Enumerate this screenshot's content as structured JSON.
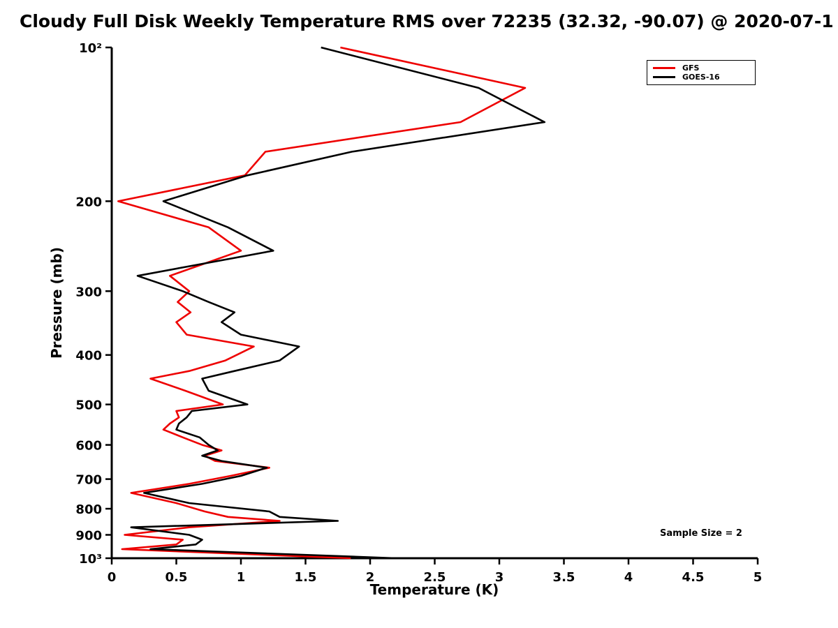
{
  "chart_data": {
    "type": "line",
    "title": "Cloudy Full Disk Weekly Temperature RMS over 72235 (32.32, -90.07) @ 2020-07-1",
    "xlabel": "Temperature (K)",
    "ylabel": "Pressure (mb)",
    "xlim": [
      0,
      5
    ],
    "ylim": [
      100,
      1000
    ],
    "yscale": "log",
    "y_inverted": true,
    "grid": false,
    "xticks": {
      "values": [
        0,
        0.5,
        1,
        1.5,
        2,
        2.5,
        3,
        3.5,
        4,
        4.5,
        5
      ],
      "labels": [
        "0",
        "0.5",
        "1",
        "1.5",
        "2",
        "2.5",
        "3",
        "3.5",
        "4",
        "4.5",
        "5"
      ]
    },
    "yticks": {
      "values": [
        100,
        200,
        300,
        400,
        500,
        600,
        700,
        800,
        900,
        1000
      ],
      "labels": [
        "10²",
        "200",
        "300",
        "400",
        "500",
        "600",
        "700",
        "800",
        "900",
        "10³"
      ]
    },
    "legend": {
      "position": "top-right",
      "entries": [
        {
          "label": "GFS",
          "color": "#ee0000"
        },
        {
          "label": "GOES-16",
          "color": "#000000"
        }
      ]
    },
    "annotation": "Sample Size = 2",
    "pressures": [
      100,
      120,
      140,
      160,
      178,
      200,
      225,
      250,
      280,
      300,
      315,
      330,
      345,
      365,
      385,
      410,
      430,
      445,
      470,
      500,
      515,
      530,
      545,
      560,
      580,
      600,
      615,
      630,
      645,
      665,
      690,
      715,
      745,
      780,
      810,
      830,
      845,
      870,
      900,
      920,
      940,
      960,
      1000
    ],
    "series": [
      {
        "name": "GFS",
        "color": "#ee0000",
        "values": [
          1.77,
          3.2,
          2.7,
          1.19,
          1.03,
          0.05,
          0.75,
          1.0,
          0.45,
          0.6,
          0.51,
          0.61,
          0.5,
          0.58,
          1.1,
          0.88,
          0.6,
          0.3,
          0.57,
          0.86,
          0.5,
          0.52,
          0.45,
          0.4,
          0.55,
          0.7,
          0.85,
          0.72,
          0.8,
          1.22,
          0.92,
          0.6,
          0.15,
          0.5,
          0.72,
          0.9,
          1.3,
          0.6,
          0.1,
          0.55,
          0.5,
          0.08,
          1.85
        ]
      },
      {
        "name": "GOES-16",
        "color": "#000000",
        "values": [
          1.62,
          2.84,
          3.35,
          1.86,
          1.05,
          0.4,
          0.9,
          1.25,
          0.2,
          0.55,
          0.75,
          0.95,
          0.85,
          1.0,
          1.45,
          1.3,
          0.95,
          0.7,
          0.75,
          1.05,
          0.62,
          0.58,
          0.52,
          0.5,
          0.68,
          0.75,
          0.82,
          0.7,
          0.85,
          1.2,
          1.0,
          0.7,
          0.25,
          0.6,
          1.22,
          1.3,
          1.75,
          0.15,
          0.6,
          0.7,
          0.65,
          0.3,
          2.2
        ]
      }
    ]
  }
}
